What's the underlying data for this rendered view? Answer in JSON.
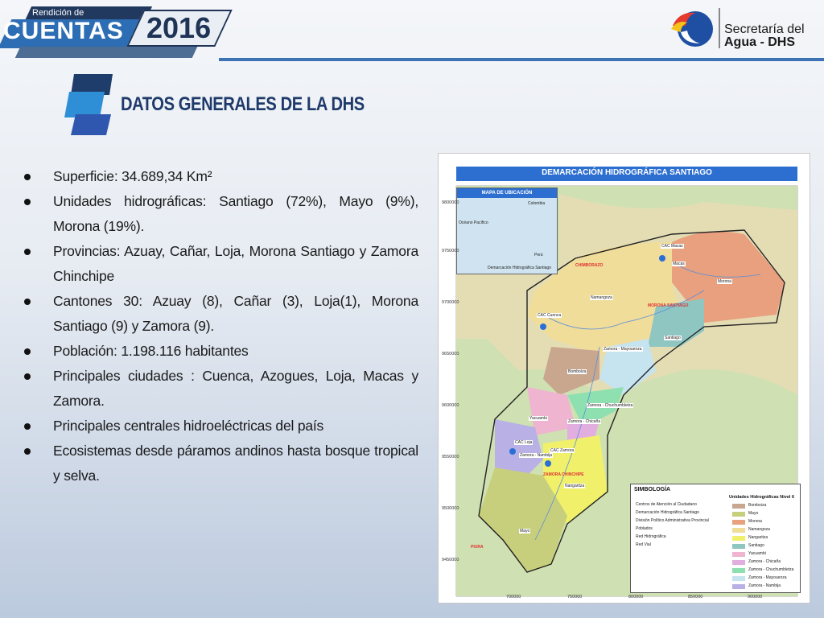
{
  "header": {
    "badge_top": "Rendición de",
    "badge_main": "CUENTAS",
    "badge_year": "2016",
    "org_line1": "Secretaría del",
    "org_line2": "Agua - DHS"
  },
  "title": "DATOS GENERALES DE LA DHS",
  "bullets": [
    "Superficie: 34.689,34 Km²",
    "Unidades hidrográficas: Santiago (72%), Mayo (9%), Morona (19%).",
    "Provincias: Azuay, Cañar, Loja, Morona Santiago y Zamora Chinchipe",
    "Cantones 30: Azuay (8), Cañar (3), Loja(1), Morona Santiago (9) y Zamora (9).",
    "Población: 1.198.116 habitantes",
    "Principales ciudades : Cuenca, Azogues, Loja, Macas y Zamora.",
    "Principales centrales hidroeléctricas del país",
    "Ecosistemas desde páramos andinos hasta bosque tropical y selva."
  ],
  "map": {
    "title": "DEMARCACIÓN HIDROGRÁFICA SANTIAGO",
    "inset": {
      "title": "MAPA DE UBICACIÓN",
      "labels": [
        "Colombia",
        "Océano Pacífico",
        "Perú",
        "Demarcación Hidrográfica Santiago"
      ]
    },
    "places": [
      "Macas",
      "Morona",
      "Namangoza",
      "Santiago",
      "Zamora - Mayouenza",
      "Bomboiza",
      "Yacuambi",
      "Zamora - Chicaña",
      "Zamora - Chuchumbletza",
      "Zamora - Nambija",
      "Nangaritza",
      "Mayo"
    ],
    "cac_labels": [
      "CAC Macas",
      "CAC Cuenca",
      "CAC Loja",
      "CAC Zamora"
    ],
    "province_labels": [
      "CHIMBORAZO",
      "MORONA SANTIAGO",
      "ZAMORA CHINCHIPE",
      "PIURA"
    ],
    "y_ticks": [
      "9800000",
      "9750000",
      "9700000",
      "9650000",
      "9600000",
      "9550000",
      "9500000",
      "9450000"
    ],
    "x_ticks": [
      "700000",
      "750000",
      "800000",
      "850000",
      "900000"
    ],
    "legend": {
      "title": "SIMBOLOGÍA",
      "subtitle": "Unidades Hidrográficas Nivel 6",
      "symbols": [
        "Centros de Atención al Ciudadano",
        "Demarcación Hidrográfica Santiago",
        "División Político Administrativa Provincial",
        "Poblados",
        "Red Hidrográfica",
        "Red Vial"
      ],
      "units": [
        {
          "name": "Bomboiza",
          "color": "#c9a78f"
        },
        {
          "name": "Mayo",
          "color": "#c8cf7c"
        },
        {
          "name": "Morona",
          "color": "#e8a07e"
        },
        {
          "name": "Namangoza",
          "color": "#f1dd9a"
        },
        {
          "name": "Nangaritza",
          "color": "#f0f06a"
        },
        {
          "name": "Santiago",
          "color": "#8fc6c2"
        },
        {
          "name": "Yacuambi",
          "color": "#efb4cf"
        },
        {
          "name": "Zamora - Chicaña",
          "color": "#e2aee0"
        },
        {
          "name": "Zamora - Chuchumbletza",
          "color": "#8fe0b0"
        },
        {
          "name": "Zamora - Mayouenza",
          "color": "#c6e3f0"
        },
        {
          "name": "Zamora - Nambija",
          "color": "#b9b0e6"
        }
      ]
    }
  },
  "colors": {
    "accent_blue": "#3d73b5",
    "title_color": "#1f3a6a",
    "map_title_bar": "#2d6fd0"
  }
}
